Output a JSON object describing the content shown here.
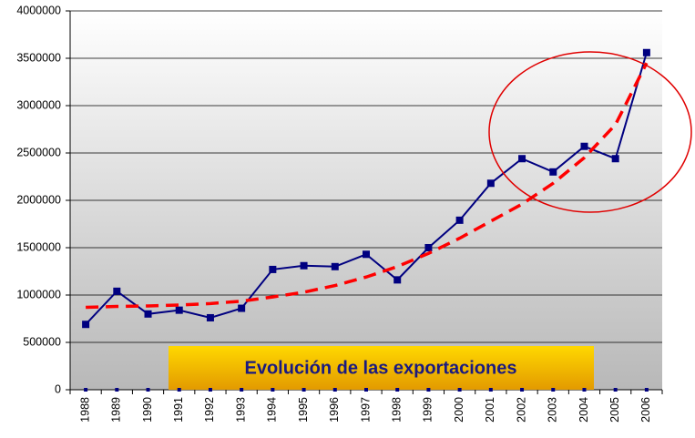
{
  "chart_data": {
    "type": "line",
    "title": "Evolución de las exportaciones",
    "categories": [
      "1988",
      "1989",
      "1990",
      "1991",
      "1992",
      "1993",
      "1994",
      "1995",
      "1996",
      "1997",
      "1998",
      "1999",
      "2000",
      "2001",
      "2002",
      "2003",
      "2004",
      "2005",
      "2006"
    ],
    "series": [
      {
        "color": "#000080",
        "values": [
          690000,
          1040000,
          800000,
          840000,
          760000,
          860000,
          1270000,
          1310000,
          1300000,
          1430000,
          1160000,
          1500000,
          1790000,
          2180000,
          2440000,
          2300000,
          2570000,
          2440000,
          3560000
        ]
      },
      {
        "color": "#ff0000",
        "dashed": true,
        "values": [
          870000,
          880000,
          885000,
          895000,
          910000,
          935000,
          980000,
          1030000,
          1100000,
          1190000,
          1300000,
          1440000,
          1600000,
          1780000,
          1960000,
          2180000,
          2450000,
          2800000,
          3450000
        ]
      },
      {
        "color": "#000080",
        "markers_only": true,
        "values": [
          0,
          0,
          0,
          0,
          0,
          0,
          0,
          0,
          0,
          0,
          0,
          0,
          0,
          0,
          0,
          0,
          0,
          0,
          0
        ]
      }
    ],
    "ylim": [
      0,
      4000000
    ],
    "yticks": [
      0,
      500000,
      1000000,
      1500000,
      2000000,
      2500000,
      3000000,
      3500000,
      4000000
    ],
    "grid": true
  }
}
